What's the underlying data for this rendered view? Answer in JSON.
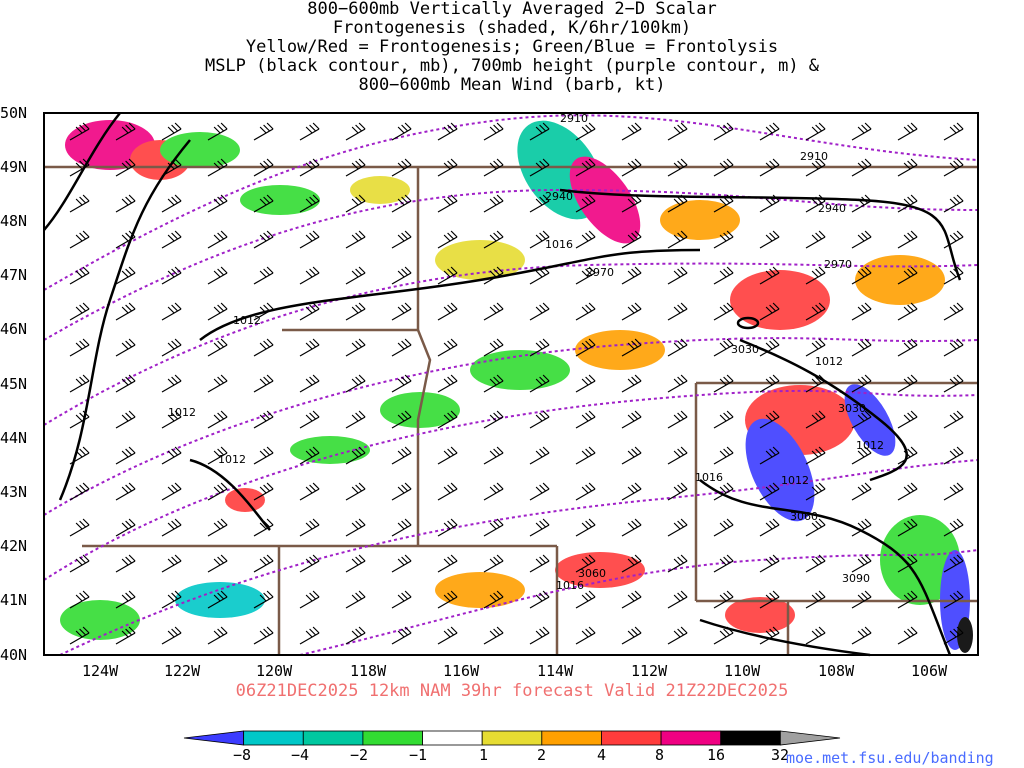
{
  "title_lines": [
    "800−600mb Vertically Averaged 2−D Scalar",
    "Frontogenesis (shaded, K/6hr/100km)",
    "Yellow/Red = Frontogenesis;  Green/Blue = Frontolysis",
    "MSLP (black contour, mb), 700mb height (purple contour, m) &",
    "800−600mb Mean Wind (barb, kt)"
  ],
  "lat_labels": [
    "50N",
    "49N",
    "48N",
    "47N",
    "46N",
    "45N",
    "44N",
    "43N",
    "42N",
    "41N",
    "40N"
  ],
  "lon_labels": [
    "124W",
    "122W",
    "120W",
    "118W",
    "116W",
    "114W",
    "112W",
    "110W",
    "108W",
    "106W"
  ],
  "valid_text": "06Z21DEC2025 12km NAM 39hr forecast Valid 21Z22DEC2025",
  "credit": "moe.met.fsu.edu/banding",
  "colorbar": {
    "labels": [
      "−8",
      "−4",
      "−2",
      "−1",
      "1",
      "2",
      "4",
      "8",
      "16",
      "32"
    ],
    "colors": [
      "#3c3cff",
      "#00c8c8",
      "#00c8a0",
      "#32dc32",
      "#ffffff",
      "#e6dc32",
      "#ffa000",
      "#ff3c3c",
      "#f00082",
      "#000000",
      "#a0a0a0"
    ]
  },
  "height_contour_labels": [
    "2910",
    "2910",
    "2940",
    "2940",
    "2970",
    "2970",
    "3030",
    "3030",
    "3060",
    "3060",
    "3090"
  ],
  "mslp_contour_labels": [
    "1012",
    "1012",
    "1012",
    "1012",
    "1012",
    "1012",
    "1016",
    "1016",
    "1016"
  ],
  "colors": {
    "frontolysis_strong": "#3c3cff",
    "frontolysis": "#32dc32",
    "frontogenesis_weak": "#e6dc32",
    "frontogenesis": "#ffa000",
    "frontogenesis_strong": "#ff3c3c",
    "frontogenesis_max": "#f00082",
    "mslp_contour": "#000000",
    "height_contour": "#a020c8",
    "borders": "#7a5a48",
    "title_valid": "#f07070",
    "credit": "#4a6cff"
  }
}
